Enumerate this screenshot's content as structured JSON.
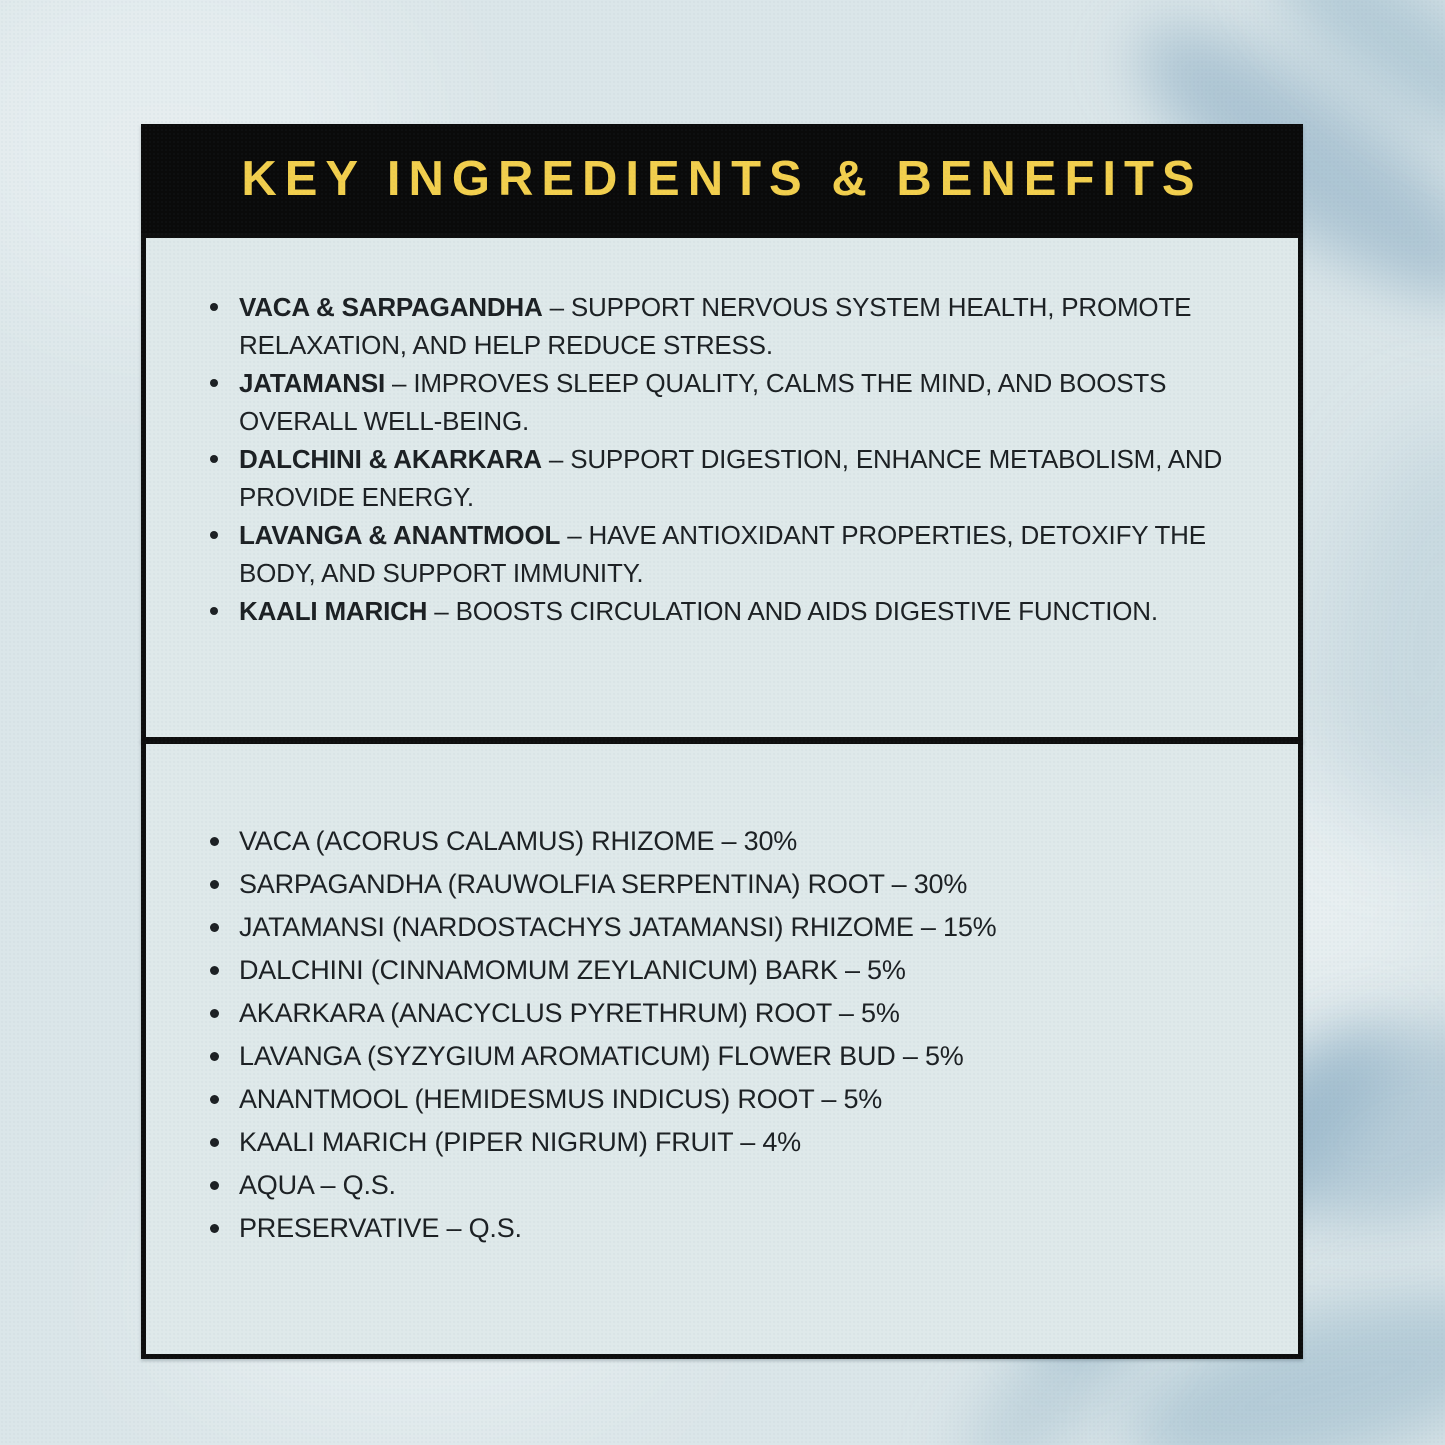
{
  "header": {
    "title": "KEY INGREDIENTS & BENEFITS"
  },
  "benefits_box": {
    "items": [
      {
        "name": "VACA & SARPAGANDHA",
        "text": "– SUPPORT NERVOUS SYSTEM HEALTH, PROMOTE RELAXATION, AND HELP REDUCE STRESS."
      },
      {
        "name": "JATAMANSI",
        "text": "– IMPROVES SLEEP QUALITY, CALMS THE MIND, AND BOOSTS OVERALL WELL-BEING."
      },
      {
        "name": "DALCHINI & AKARKARA",
        "text": "– SUPPORT DIGESTION, ENHANCE METABOLISM, AND PROVIDE ENERGY."
      },
      {
        "name": "LAVANGA & ANANTMOOL",
        "text": "– HAVE ANTIOXIDANT PROPERTIES, DETOXIFY THE BODY, AND SUPPORT IMMUNITY."
      },
      {
        "name": "KAALI MARICH",
        "text": "– BOOSTS CIRCULATION AND AIDS DIGESTIVE FUNCTION."
      }
    ]
  },
  "ingredients_box": {
    "items": [
      "VACA (ACORUS CALAMUS) RHIZOME – 30%",
      "SARPAGANDHA (RAUWOLFIA SERPENTINA) ROOT – 30%",
      "JATAMANSI (NARDOSTACHYS JATAMANSI) RHIZOME – 15%",
      "DALCHINI (CINNAMOMUM ZEYLANICUM) BARK – 5%",
      "AKARKARA (ANACYCLUS PYRETHRUM) ROOT – 5%",
      "LAVANGA (SYZYGIUM AROMATICUM) FLOWER BUD – 5%",
      "ANANTMOOL (HEMIDESMUS INDICUS) ROOT – 5%",
      "KAALI MARICH (PIPER NIGRUM) FRUIT – 4%",
      "AQUA – Q.S.",
      "PRESERVATIVE – Q.S."
    ]
  },
  "colors": {
    "accent-yellow": "#F2CF4D",
    "header-bg": "#0A0A0A",
    "panel-bg": "#DFE9EA",
    "panel-border": "#0D0D0D",
    "page-bg": "#DBE6E9",
    "text": "#1C2023"
  }
}
